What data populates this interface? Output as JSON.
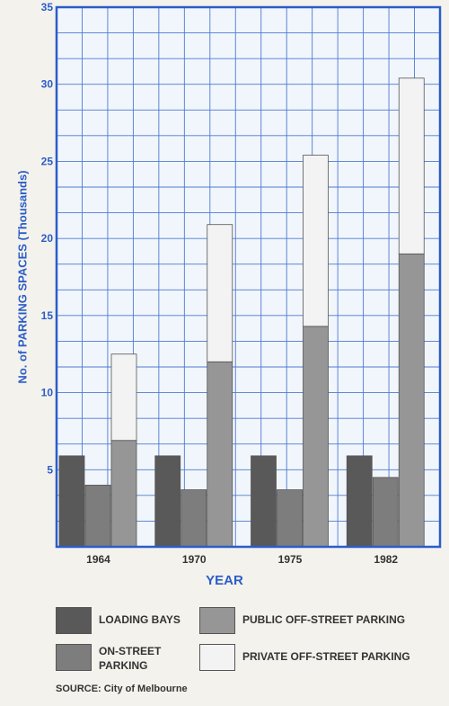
{
  "chart_data": {
    "type": "bar",
    "stacked_groups": true,
    "title": "",
    "xlabel": "YEAR",
    "ylabel": "No. of PARKING SPACES (Thousands)",
    "ylim": [
      0,
      35
    ],
    "yticks": [
      5,
      10,
      15,
      20,
      25,
      30,
      35
    ],
    "grid": true,
    "categories": [
      "1964",
      "1970",
      "1975",
      "1982"
    ],
    "series": [
      {
        "name": "LOADING BAYS",
        "color": "#595959",
        "values": [
          5.9,
          5.9,
          5.9,
          5.9
        ]
      },
      {
        "name": "ON-STREET PARKING",
        "color": "#7d7d7d",
        "values": [
          4.0,
          3.7,
          3.7,
          4.5
        ]
      },
      {
        "name": "PUBLIC OFF-STREET PARKING",
        "color": "#969696",
        "values": [
          6.9,
          12.0,
          14.3,
          19.0
        ]
      },
      {
        "name": "PRIVATE OFF-STREET PARKING",
        "color": "#f3f3f3",
        "values": [
          5.6,
          8.9,
          11.1,
          11.4
        ]
      }
    ],
    "source": "SOURCE: City of Melbourne"
  },
  "legend": {
    "loading_bays": "LOADING BAYS",
    "on_street": "ON-STREET PARKING",
    "public_off_street": "PUBLIC OFF-STREET PARKING",
    "private_off_street": "PRIVATE OFF-STREET PARKING"
  },
  "colors": {
    "axis_blue": "#2b5dc9",
    "plot_bg": "#f1f6fc",
    "grid": "#4f79cf"
  }
}
